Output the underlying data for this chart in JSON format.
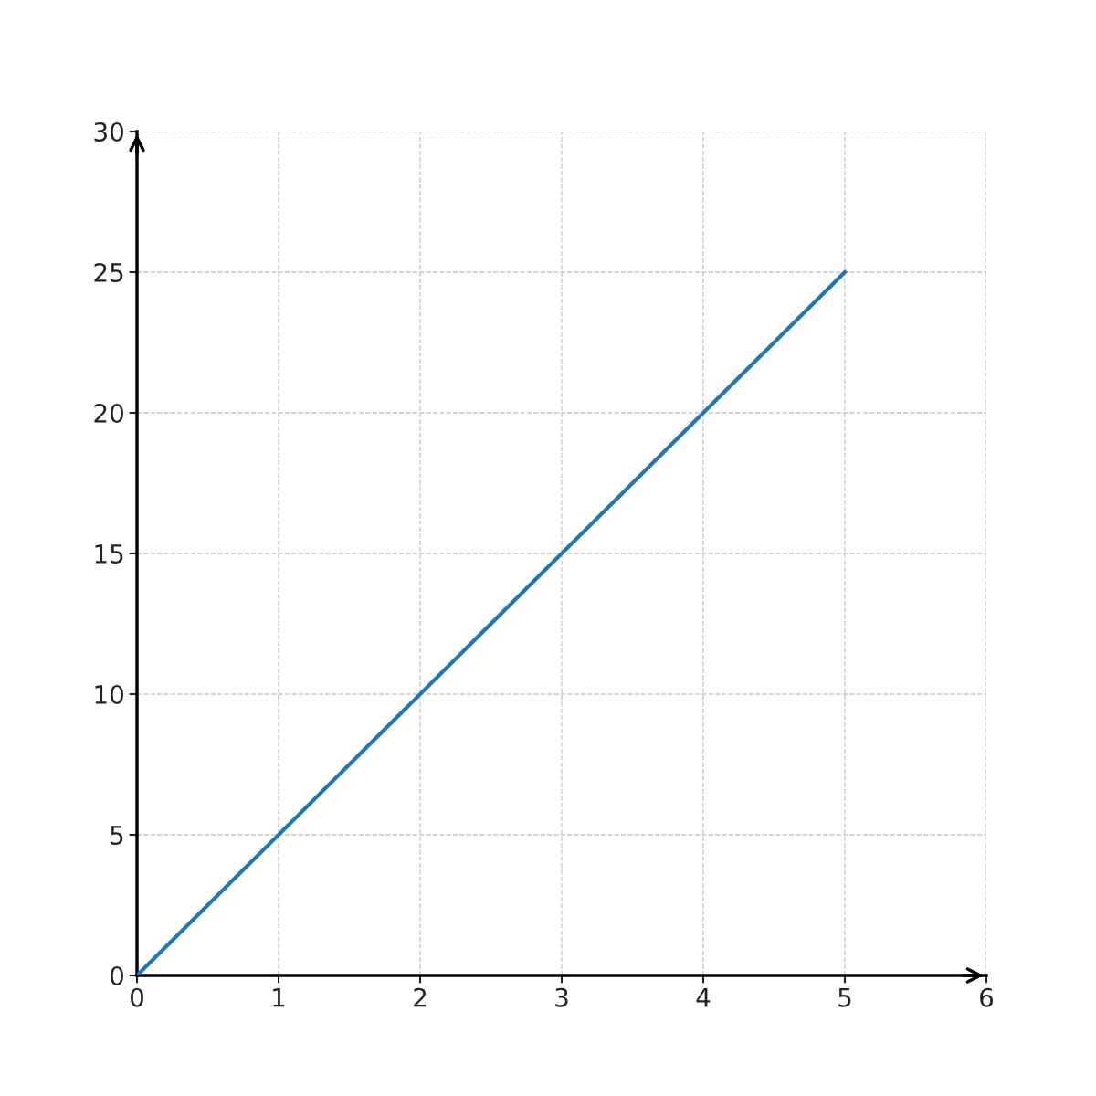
{
  "chart_data": {
    "type": "line",
    "x": [
      0,
      1,
      2,
      3,
      4,
      5
    ],
    "series": [
      {
        "color": "#1f77b4",
        "values": [
          0,
          5,
          10,
          15,
          20,
          25
        ]
      }
    ],
    "xlim": [
      0,
      6
    ],
    "xticks": [
      0,
      1,
      2,
      3,
      4,
      5,
      6
    ],
    "ylim": [
      0,
      30
    ],
    "yticks": [
      0,
      5,
      10,
      15,
      20,
      25,
      30
    ],
    "grid": true,
    "line_style": "solid",
    "marker": "none"
  }
}
